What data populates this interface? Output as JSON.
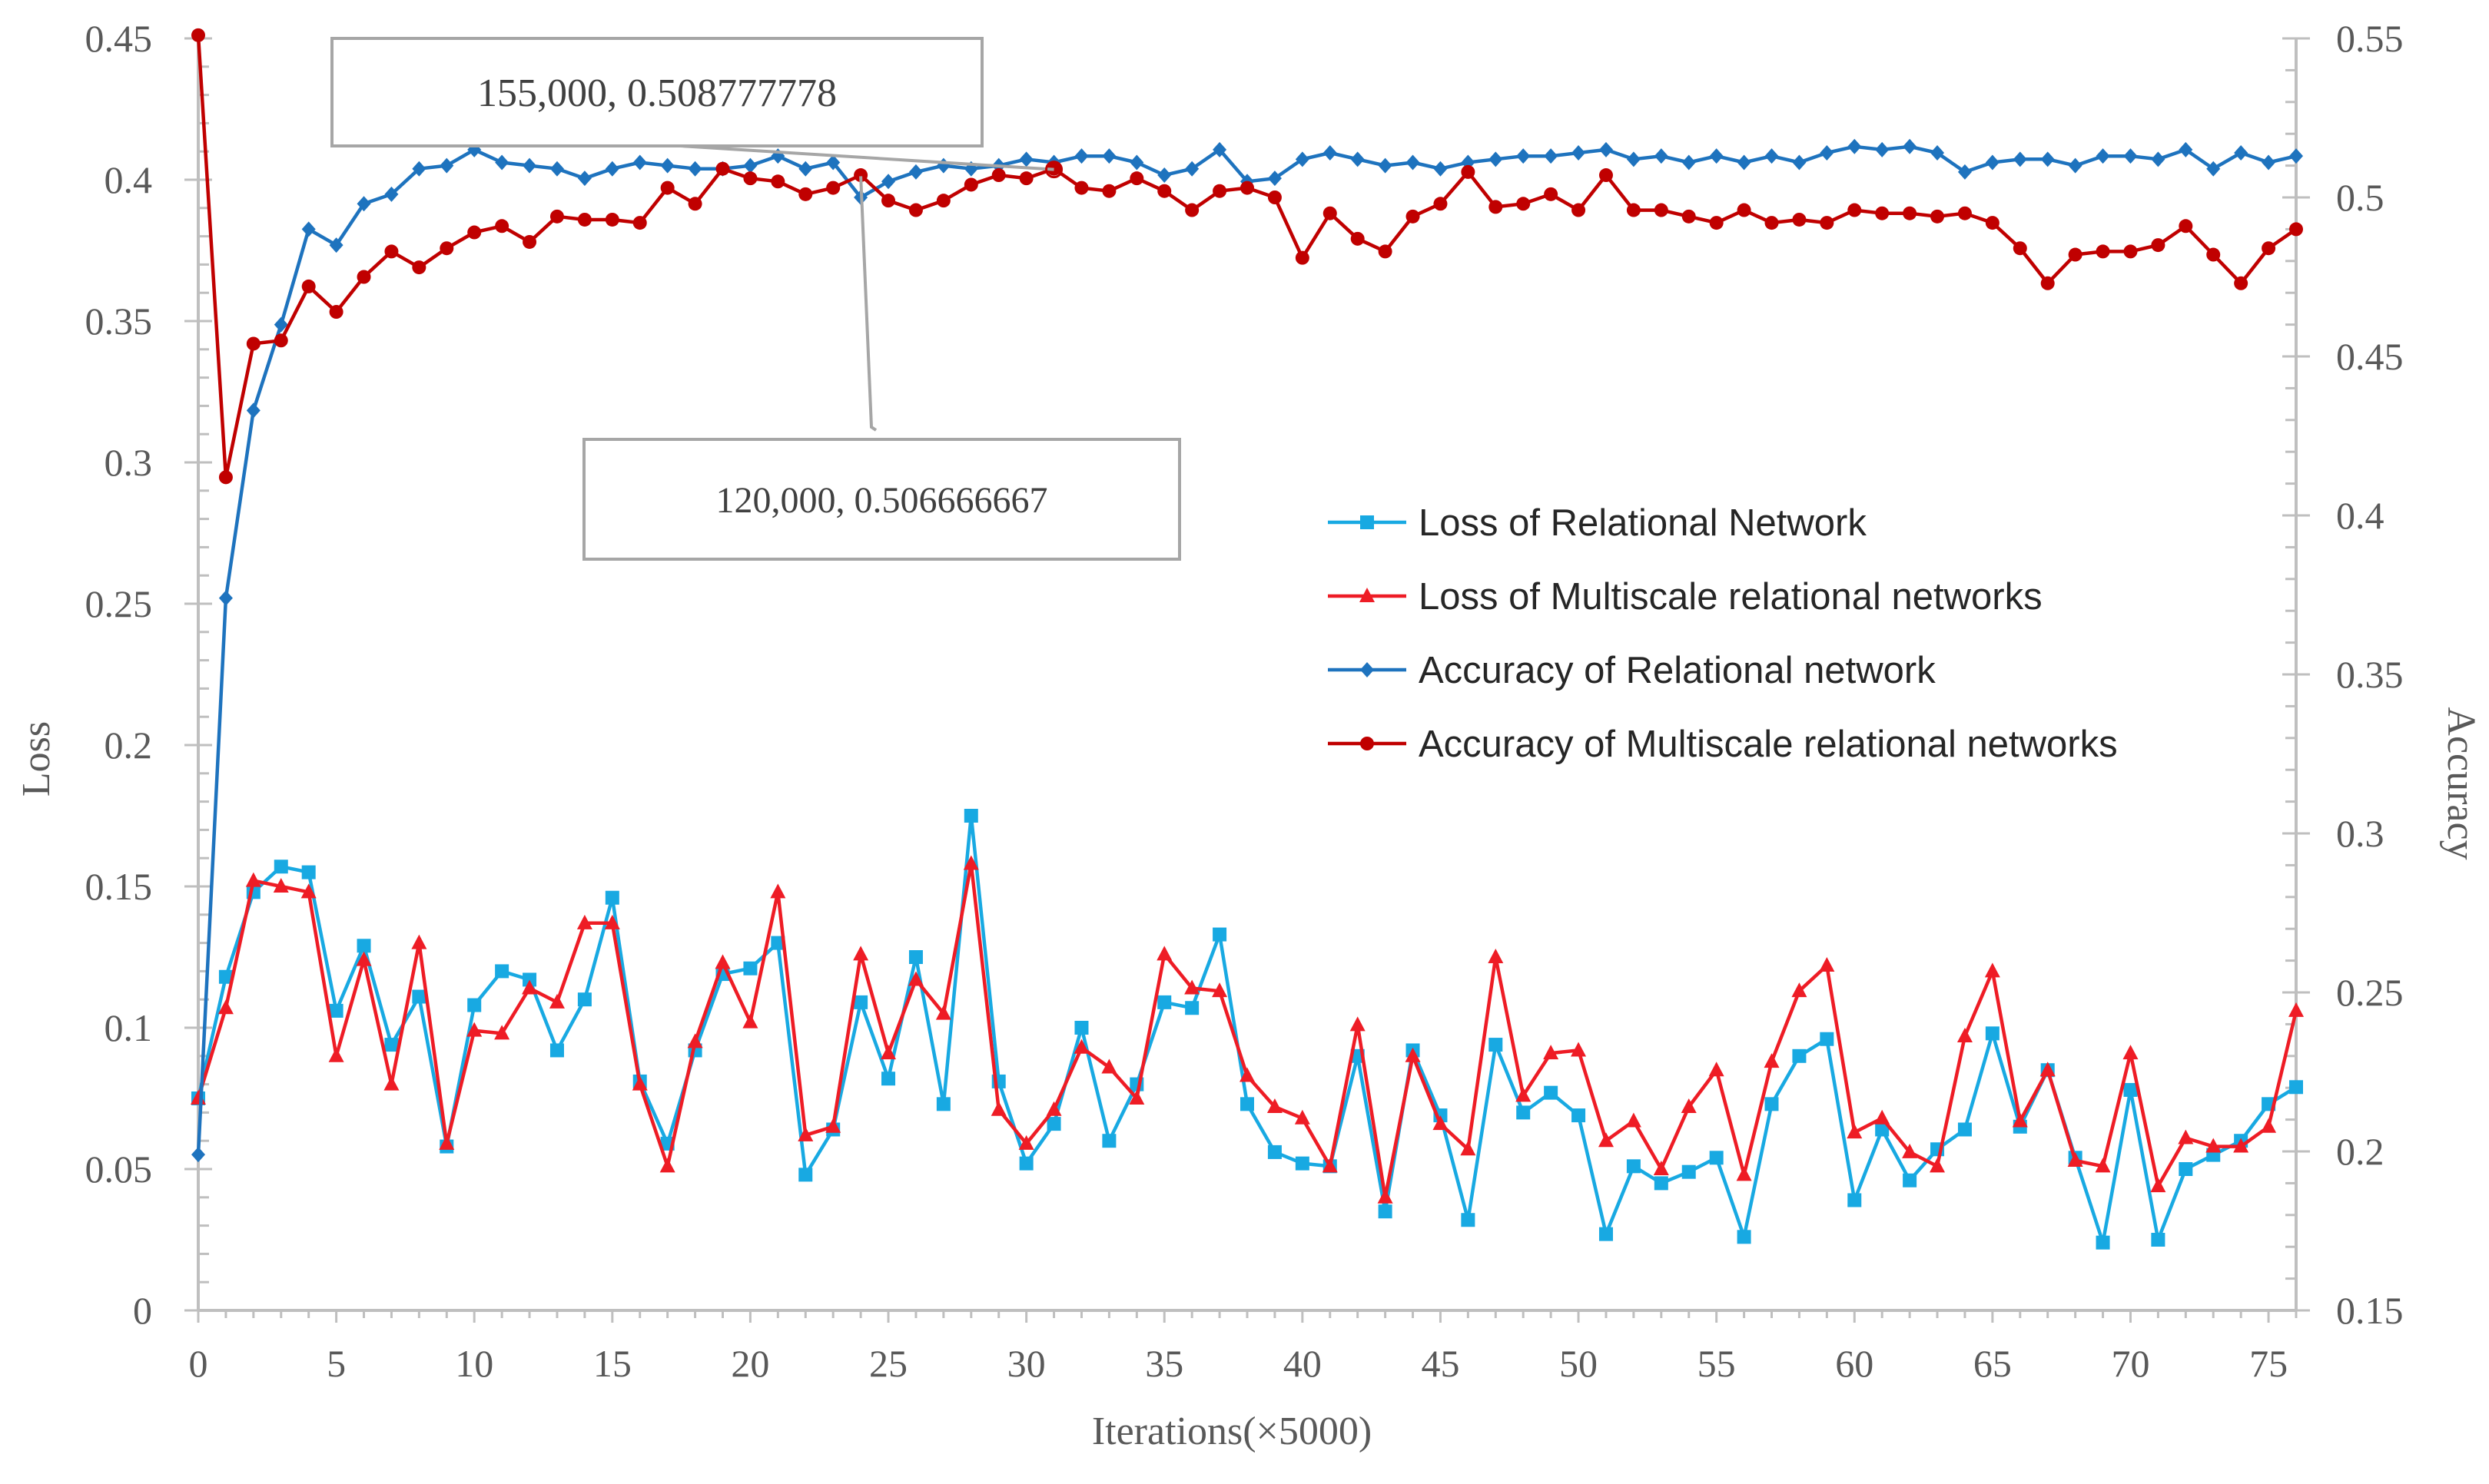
{
  "chart_data": {
    "type": "line",
    "title": "",
    "xlabel": "Iterations(×5000)",
    "ylabel": "Loss",
    "y2label": "Accuracy",
    "xlim": [
      0,
      76
    ],
    "ylim": [
      0,
      0.45
    ],
    "y2lim": [
      0.15,
      0.55
    ],
    "x_ticks": [
      "0",
      "5",
      "10",
      "15",
      "20",
      "25",
      "30",
      "35",
      "40",
      "45",
      "50",
      "55",
      "60",
      "65",
      "70",
      "75"
    ],
    "y_ticks": [
      "0",
      "0.05",
      "0.1",
      "0.15",
      "0.2",
      "0.25",
      "0.3",
      "0.35",
      "0.4",
      "0.45"
    ],
    "y2_ticks": [
      "0.15",
      "0.2",
      "0.25",
      "0.3",
      "0.35",
      "0.4",
      "0.45",
      "0.5",
      "0.55"
    ],
    "legend_position": "right-middle",
    "series": [
      {
        "name": "Loss of Relational Network",
        "axis": "left",
        "color": "#18A9E2",
        "marker": "square",
        "values": [
          0.075,
          0.118,
          0.148,
          0.157,
          0.155,
          0.106,
          0.129,
          0.094,
          0.111,
          0.058,
          0.108,
          0.12,
          0.117,
          0.092,
          0.11,
          0.146,
          0.081,
          0.059,
          0.092,
          0.119,
          0.121,
          0.13,
          0.048,
          0.064,
          0.109,
          0.082,
          0.125,
          0.073,
          0.175,
          0.081,
          0.052,
          0.066,
          0.1,
          0.06,
          0.08,
          0.109,
          0.107,
          0.133,
          0.073,
          0.056,
          0.052,
          0.051,
          0.09,
          0.035,
          0.092,
          0.069,
          0.032,
          0.094,
          0.07,
          0.077,
          0.069,
          0.027,
          0.051,
          0.045,
          0.049,
          0.054,
          0.026,
          0.073,
          0.09,
          0.096,
          0.039,
          0.064,
          0.046,
          0.057,
          0.064,
          0.098,
          0.065,
          0.085,
          0.054,
          0.024,
          0.078,
          0.025,
          0.05,
          0.055,
          0.06,
          0.073,
          0.079
        ]
      },
      {
        "name": "Loss of Multiscale relational networks",
        "axis": "left",
        "color": "#EE1C25",
        "marker": "triangle",
        "values": [
          0.075,
          0.107,
          0.152,
          0.15,
          0.148,
          0.09,
          0.124,
          0.08,
          0.13,
          0.059,
          0.099,
          0.098,
          0.114,
          0.109,
          0.137,
          0.137,
          0.08,
          0.051,
          0.095,
          0.123,
          0.102,
          0.148,
          0.062,
          0.065,
          0.126,
          0.091,
          0.117,
          0.105,
          0.158,
          0.071,
          0.059,
          0.071,
          0.093,
          0.086,
          0.075,
          0.126,
          0.114,
          0.113,
          0.083,
          0.072,
          0.068,
          0.051,
          0.101,
          0.04,
          0.09,
          0.066,
          0.057,
          0.125,
          0.076,
          0.091,
          0.092,
          0.06,
          0.067,
          0.05,
          0.072,
          0.085,
          0.048,
          0.088,
          0.113,
          0.122,
          0.063,
          0.068,
          0.056,
          0.051,
          0.097,
          0.12,
          0.067,
          0.085,
          0.053,
          0.051,
          0.091,
          0.044,
          0.061,
          0.058,
          0.058,
          0.065,
          0.106
        ]
      },
      {
        "name": "Accuracy of Relational network",
        "axis": "right",
        "color": "#1E73BE",
        "marker": "diamond",
        "values": [
          0.199,
          0.374,
          0.433,
          0.46,
          0.49,
          0.485,
          0.498,
          0.501,
          0.509,
          0.51,
          0.515,
          0.511,
          0.51,
          0.509,
          0.506,
          0.509,
          0.511,
          0.51,
          0.509,
          0.509,
          0.51,
          0.513,
          0.509,
          0.511,
          0.5,
          0.505,
          0.508,
          0.51,
          0.509,
          0.51,
          0.512,
          0.511,
          0.513,
          0.513,
          0.511,
          0.507,
          0.509,
          0.515,
          0.505,
          0.506,
          0.512,
          0.514,
          0.512,
          0.51,
          0.511,
          0.509,
          0.511,
          0.512,
          0.513,
          0.513,
          0.514,
          0.515,
          0.512,
          0.513,
          0.511,
          0.513,
          0.511,
          0.513,
          0.511,
          0.514,
          0.516,
          0.515,
          0.516,
          0.514,
          0.508,
          0.511,
          0.512,
          0.512,
          0.51,
          0.513,
          0.513,
          0.512,
          0.515,
          0.509,
          0.514,
          0.511,
          0.513
        ]
      },
      {
        "name": "Accuracy of Multiscale relational networks",
        "axis": "right",
        "color": "#C00000",
        "marker": "circle",
        "values": [
          0.551,
          0.412,
          0.454,
          0.455,
          0.472,
          0.464,
          0.475,
          0.483,
          0.478,
          0.484,
          0.489,
          0.491,
          0.486,
          0.494,
          0.493,
          0.493,
          0.492,
          0.503,
          0.498,
          0.509,
          0.506,
          0.505,
          0.501,
          0.503,
          0.507,
          0.499,
          0.496,
          0.499,
          0.504,
          0.507,
          0.506,
          0.509,
          0.503,
          0.502,
          0.506,
          0.502,
          0.496,
          0.502,
          0.503,
          0.5,
          0.481,
          0.495,
          0.487,
          0.483,
          0.494,
          0.498,
          0.508,
          0.497,
          0.498,
          0.501,
          0.496,
          0.507,
          0.496,
          0.496,
          0.494,
          0.492,
          0.496,
          0.492,
          0.493,
          0.492,
          0.496,
          0.495,
          0.495,
          0.494,
          0.495,
          0.492,
          0.484,
          0.473,
          0.482,
          0.483,
          0.483,
          0.485,
          0.491,
          0.482,
          0.473,
          0.484,
          0.49
        ]
      }
    ],
    "annotations": [
      {
        "text": "155,000, 0.508777778",
        "x": 31,
        "axis": "right",
        "y": 0.508777778
      },
      {
        "text": "120,000, 0.506666667",
        "x": 24,
        "axis": "right",
        "y": 0.506666667
      }
    ]
  }
}
